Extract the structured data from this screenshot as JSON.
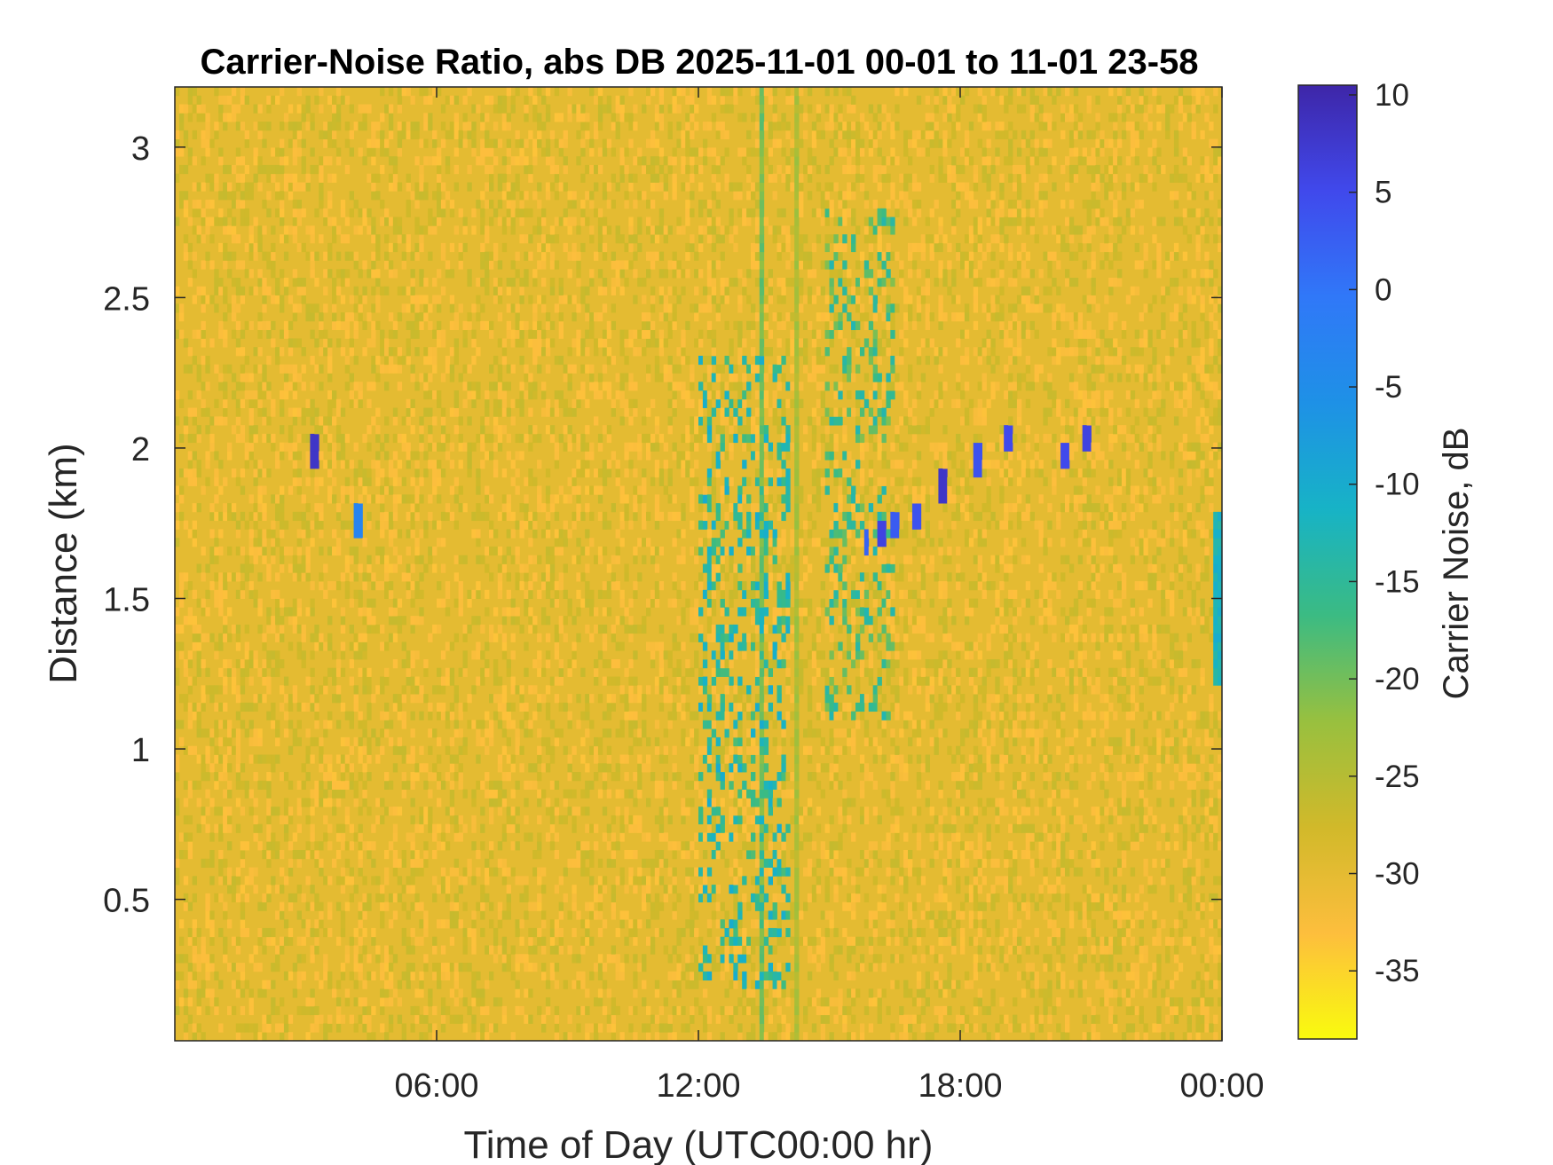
{
  "chart_data": {
    "type": "heatmap",
    "title": "Carrier-Noise Ratio, abs DB 2025-11-01 00-01 to 11-01 23-58",
    "xlabel": "Time of Day (UTC00:00 hr)",
    "ylabel": "Distance (km)",
    "x_unit": "hours since 2025-11-01 00:00 UTC",
    "xlim": [
      0,
      24
    ],
    "ylim": [
      0.03,
      3.2
    ],
    "x_ticks": [
      {
        "value": 6,
        "label": "06:00"
      },
      {
        "value": 12,
        "label": "12:00"
      },
      {
        "value": 18,
        "label": "18:00"
      },
      {
        "value": 24,
        "label": "00:00"
      }
    ],
    "y_ticks": [
      {
        "value": 0.5,
        "label": "0.5"
      },
      {
        "value": 1,
        "label": "1"
      },
      {
        "value": 1.5,
        "label": "1.5"
      },
      {
        "value": 2,
        "label": "2"
      },
      {
        "value": 2.5,
        "label": "2.5"
      },
      {
        "value": 3,
        "label": "3"
      }
    ],
    "background_level_db": -30,
    "colorbar": {
      "label": "Carrier Noise, dB",
      "range": [
        -38.5,
        10.5
      ],
      "ticks": [
        {
          "value": 10,
          "label": "10"
        },
        {
          "value": 5,
          "label": "5"
        },
        {
          "value": 0,
          "label": "0"
        },
        {
          "value": -5,
          "label": "-5"
        },
        {
          "value": -10,
          "label": "-10"
        },
        {
          "value": -15,
          "label": "-15"
        },
        {
          "value": -20,
          "label": "-20"
        },
        {
          "value": -25,
          "label": "-25"
        },
        {
          "value": -30,
          "label": "-30"
        },
        {
          "value": -35,
          "label": "-35"
        }
      ],
      "colormap": [
        "#f9fb0e",
        "#fdbe3d",
        "#d1b92a",
        "#98c03f",
        "#3bbb83",
        "#17b3c6",
        "#1e91e6",
        "#3078f8",
        "#4049ec",
        "#3e26a8"
      ]
    },
    "features": [
      {
        "name": "vertical-stripe-a",
        "x": 13.45,
        "y_range": [
          0.03,
          3.2
        ],
        "value_db": -20
      },
      {
        "name": "vertical-stripe-b",
        "x": 14.25,
        "y_range": [
          0.03,
          3.2
        ],
        "value_db": -24
      },
      {
        "name": "plume-a",
        "x_range": [
          12.0,
          14.1
        ],
        "y_range": [
          0.2,
          2.3
        ],
        "value_db": -14
      },
      {
        "name": "plume-b",
        "x_range": [
          14.9,
          16.5
        ],
        "y_range": [
          1.1,
          2.8
        ],
        "value_db": -17
      },
      {
        "name": "spot-1",
        "x": 3.2,
        "y": 1.99,
        "value_db": 8
      },
      {
        "name": "spot-2",
        "x": 4.2,
        "y": 1.76,
        "value_db": -3
      },
      {
        "name": "spot-3",
        "x": 15.85,
        "y": 1.68,
        "value_db": 2
      },
      {
        "name": "spot-4",
        "x": 16.2,
        "y": 1.72,
        "value_db": 6
      },
      {
        "name": "spot-5",
        "x": 16.5,
        "y": 1.74,
        "value_db": 3
      },
      {
        "name": "spot-6",
        "x": 17.0,
        "y": 1.78,
        "value_db": 4
      },
      {
        "name": "spot-7",
        "x": 17.6,
        "y": 1.88,
        "value_db": 8
      },
      {
        "name": "spot-8",
        "x": 18.4,
        "y": 1.96,
        "value_db": 4
      },
      {
        "name": "spot-9",
        "x": 19.1,
        "y": 2.04,
        "value_db": 5
      },
      {
        "name": "spot-10",
        "x": 20.4,
        "y": 1.97,
        "value_db": 5
      },
      {
        "name": "spot-11",
        "x": 20.9,
        "y": 2.03,
        "value_db": 6
      },
      {
        "name": "edge-band",
        "x": 23.9,
        "y_range": [
          1.2,
          1.8
        ],
        "value_db": -12
      }
    ]
  }
}
